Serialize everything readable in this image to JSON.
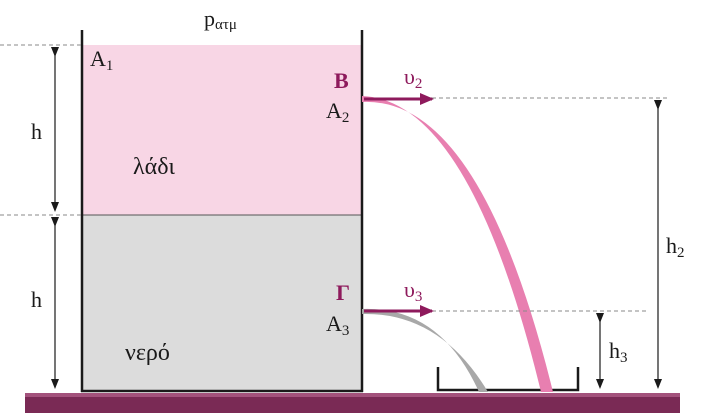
{
  "colors": {
    "oil": "#f8d6e5",
    "water": "#dcdcdc",
    "wall": "#1a1a1a",
    "accent": "#8e1a5c",
    "jet_oil": "#e87fb0",
    "jet_water": "#a8a8a8",
    "ground": "#7a2a55",
    "dash": "#8a8a8a"
  },
  "labels": {
    "atm": {
      "base": "p",
      "sub": "ατμ"
    },
    "A1": {
      "base": "A",
      "sub": "1"
    },
    "A2": {
      "base": "A",
      "sub": "2"
    },
    "A3": {
      "base": "A",
      "sub": "3"
    },
    "point_B": "B",
    "point_G": "Γ",
    "v2": {
      "base": "υ",
      "sub": "2"
    },
    "v3": {
      "base": "υ",
      "sub": "3"
    },
    "h_top": "h",
    "h_bottom": "h",
    "h2": {
      "base": "h",
      "sub": "2"
    },
    "h3": {
      "base": "h",
      "sub": "3"
    },
    "oil": "λάδι",
    "water": "νερό"
  }
}
